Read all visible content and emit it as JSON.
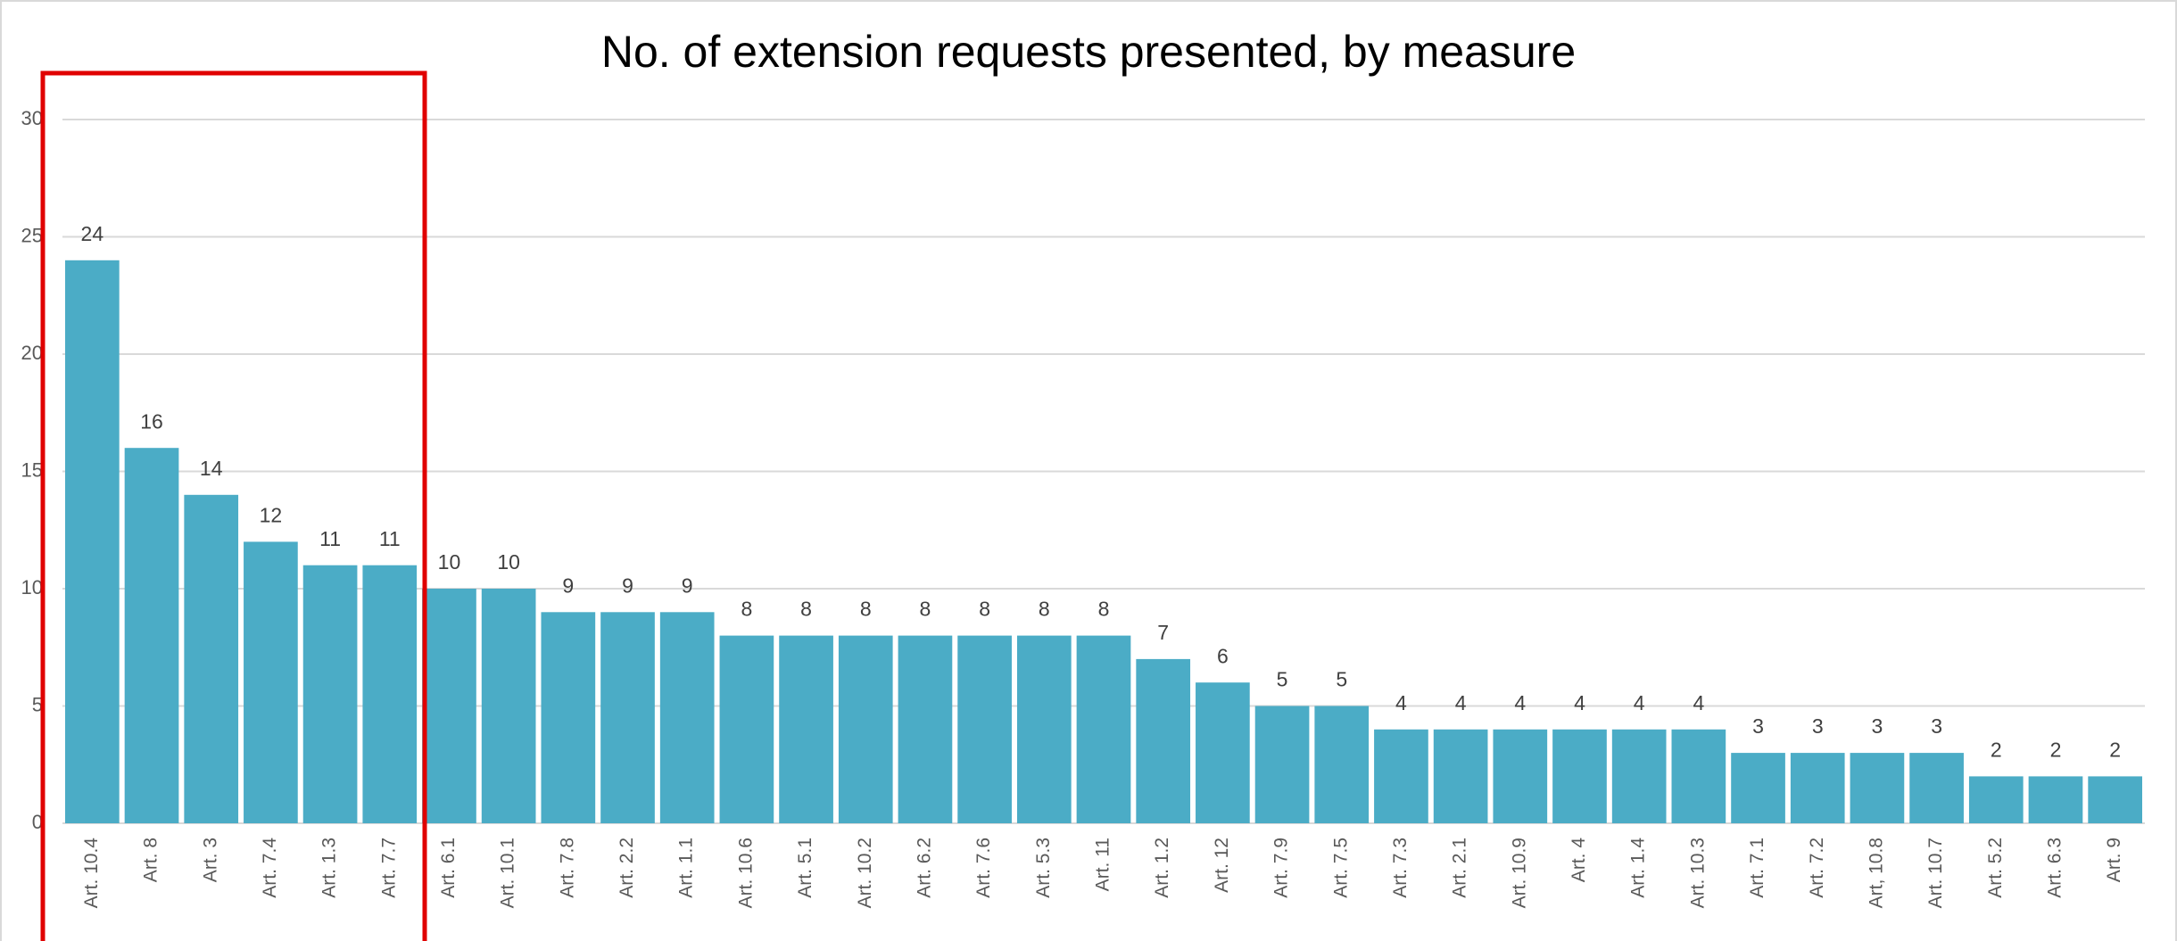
{
  "chart_data": {
    "type": "bar",
    "title": "No. of extension requests presented, by measure",
    "categories": [
      "Art. 10.4",
      "Art. 8",
      "Art. 3",
      "Art. 7.4",
      "Art. 1.3",
      "Art. 7.7",
      "Art. 6.1",
      "Art. 10.1",
      "Art. 7.8",
      "Art. 2.2",
      "Art. 1.1",
      "Art. 10.6",
      "Art. 5.1",
      "Art. 10.2",
      "Art. 6.2",
      "Art. 7.6",
      "Art. 5.3",
      "Art. 11",
      "Art. 1.2",
      "Art. 12",
      "Art. 7.9",
      "Art. 7.5",
      "Art. 7.3",
      "Art. 2.1",
      "Art. 10.9",
      "Art. 4",
      "Art. 1.4",
      "Art. 10.3",
      "Art. 7.1",
      "Art. 7.2",
      "Art, 10.8",
      "Art. 10.7",
      "Art. 5.2",
      "Art. 6.3",
      "Art. 9"
    ],
    "values": [
      24,
      16,
      14,
      12,
      11,
      11,
      10,
      10,
      9,
      9,
      9,
      8,
      8,
      8,
      8,
      8,
      8,
      8,
      7,
      6,
      5,
      5,
      4,
      4,
      4,
      4,
      4,
      4,
      3,
      3,
      3,
      3,
      2,
      2,
      2
    ],
    "color": "#4bacc6",
    "ylim": [
      0,
      30
    ],
    "yticks": [
      0,
      5,
      10,
      15,
      20,
      25,
      30
    ],
    "grid": true
  }
}
